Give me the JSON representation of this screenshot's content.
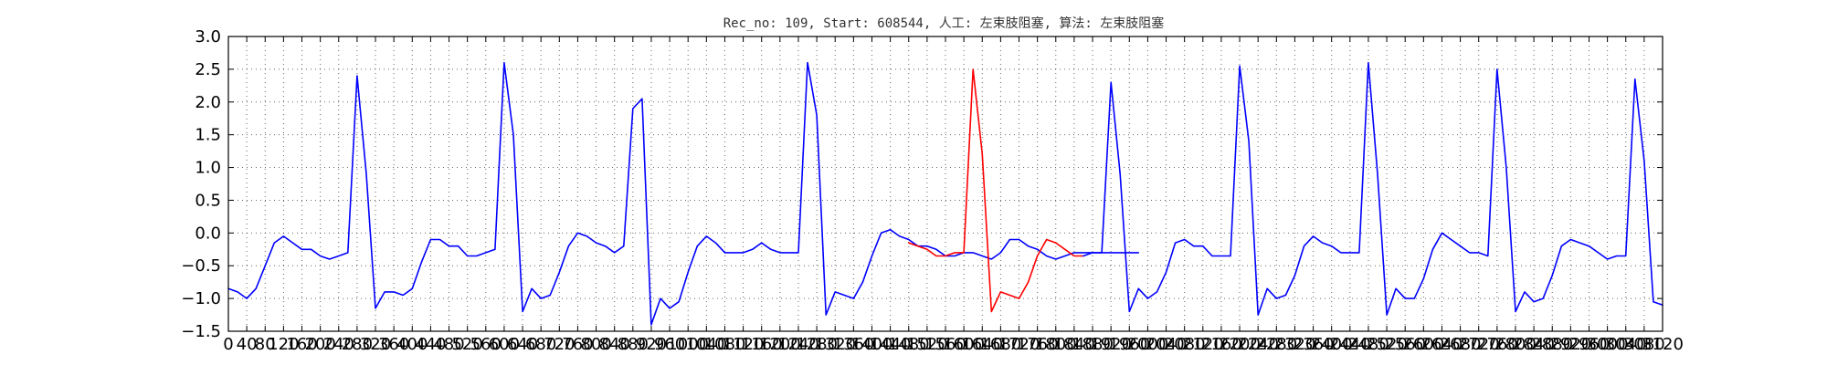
{
  "chart_data": {
    "type": "line",
    "title": "Rec_no: 109, Start: 608544, 人工: 左束肢阻塞, 算法: 左束肢阻塞",
    "xlabel": "",
    "ylabel": "",
    "xlim": [
      0,
      3120
    ],
    "ylim": [
      -1.5,
      3.0
    ],
    "y_ticks": [
      3.0,
      2.5,
      2.0,
      1.5,
      1.0,
      0.5,
      0.0,
      -0.5,
      -1.0,
      -1.5
    ],
    "y_tick_labels": [
      "3.0",
      "2.5",
      "2.0",
      "1.5",
      "1.0",
      "0.5",
      "0.0",
      "−0.5",
      "−1.0",
      "−1.5"
    ],
    "x_ticks": [
      0,
      40,
      80,
      120,
      160,
      200,
      240,
      280,
      320,
      360,
      400,
      440,
      480,
      520,
      560,
      600,
      640,
      680,
      720,
      760,
      800,
      840,
      880,
      920,
      960,
      1000,
      1040,
      1080,
      1120,
      1160,
      1200,
      1240,
      1280,
      1320,
      1360,
      1400,
      1440,
      1480,
      1520,
      1560,
      1600,
      1640,
      1680,
      1720,
      1760,
      1800,
      1840,
      1880,
      1920,
      1960,
      2000,
      2040,
      2080,
      2120,
      2160,
      2200,
      2240,
      2280,
      2320,
      2360,
      2400,
      2440,
      2480,
      2520,
      2560,
      2600,
      2640,
      2680,
      2720,
      2760,
      2800,
      2840,
      2880,
      2920,
      2960,
      3000,
      3040,
      3080,
      3120
    ],
    "x_tick_labels": [
      "0",
      "40",
      "80",
      "120",
      "160",
      "200",
      "240",
      "280",
      "320",
      "360",
      "400",
      "440",
      "480",
      "520",
      "560",
      "600",
      "640",
      "680",
      "720",
      "760",
      "800",
      "840",
      "880",
      "920",
      "960",
      "1000",
      "1040",
      "1080",
      "1120",
      "1160",
      "1200",
      "1240",
      "1280",
      "1320",
      "1360",
      "1400",
      "1440",
      "1480",
      "1520",
      "1560",
      "1600",
      "1640",
      "1680",
      "1720",
      "1760",
      "1800",
      "1840",
      "1880",
      "1920",
      "1960",
      "2000",
      "2040",
      "2080",
      "2120",
      "2160",
      "2200",
      "2240",
      "2280",
      "2320",
      "2360",
      "2400",
      "2440",
      "2480",
      "2520",
      "2560",
      "2600",
      "2640",
      "2680",
      "2720",
      "2760",
      "2800",
      "2840",
      "2880",
      "2920",
      "2960",
      "3000",
      "3040",
      "3080",
      "3120"
    ],
    "grid": true,
    "colors": {
      "normal": "#0000ff",
      "highlight": "#ff0000"
    },
    "series": [
      {
        "color": "#0000ff",
        "x": [
          0,
          20,
          40,
          60,
          80,
          100,
          120,
          140,
          160,
          180,
          200,
          220,
          240,
          260,
          280,
          300,
          320,
          340,
          360,
          380,
          400,
          420,
          440,
          460,
          480,
          500,
          520,
          540,
          560,
          580,
          600,
          620,
          640,
          660,
          680,
          700,
          720,
          740,
          760,
          780,
          800,
          820,
          840,
          860,
          880,
          900,
          920,
          940,
          960,
          980,
          1000,
          1020,
          1040,
          1060,
          1080,
          1100,
          1120,
          1140,
          1160,
          1180,
          1200,
          1220,
          1240,
          1260,
          1280,
          1300,
          1320,
          1340,
          1360,
          1380,
          1400,
          1420,
          1440,
          1460,
          1480,
          1500,
          1520,
          1540,
          1560,
          1580,
          1600,
          1620,
          1640,
          1660,
          1680,
          1700,
          1720,
          1740,
          1760,
          1780,
          1800,
          1820,
          1840,
          1860,
          1880,
          1900,
          1920,
          1940,
          1960,
          1980
        ],
        "y": [
          -0.85,
          -0.9,
          -1.0,
          -0.85,
          -0.5,
          -0.15,
          -0.05,
          -0.15,
          -0.25,
          -0.25,
          -0.35,
          -0.4,
          -0.35,
          -0.3,
          2.4,
          0.9,
          -1.15,
          -0.9,
          -0.9,
          -0.95,
          -0.85,
          -0.45,
          -0.1,
          -0.1,
          -0.2,
          -0.2,
          -0.35,
          -0.35,
          -0.3,
          -0.25,
          2.6,
          1.5,
          -1.2,
          -0.85,
          -1.0,
          -0.95,
          -0.6,
          -0.2,
          0.0,
          -0.05,
          -0.15,
          -0.2,
          -0.3,
          -0.2,
          1.9,
          2.05,
          -1.4,
          -1.0,
          -1.15,
          -1.05,
          -0.6,
          -0.2,
          -0.05,
          -0.15,
          -0.3,
          -0.3,
          -0.3,
          -0.25,
          -0.15,
          -0.25,
          -0.3,
          -0.3,
          -0.3,
          2.6,
          1.8,
          -1.25,
          -0.9,
          -0.95,
          -1.0,
          -0.75,
          -0.35,
          0.0,
          0.05,
          -0.05,
          -0.1,
          -0.2,
          -0.2,
          -0.25,
          -0.35,
          -0.35,
          -0.3,
          -0.3,
          -0.35,
          -0.4,
          -0.3,
          -0.1,
          -0.1,
          -0.2,
          -0.25,
          -0.35,
          -0.4,
          -0.35,
          -0.3,
          -0.3,
          -0.3,
          -0.3,
          -0.3,
          -0.3,
          -0.3,
          -0.3
        ]
      },
      {
        "color": "#ff0000",
        "x": [
          1480,
          1500,
          1520,
          1540,
          1560,
          1580,
          1600,
          1620,
          1640,
          1660,
          1680,
          1700,
          1720,
          1740,
          1760,
          1780,
          1800,
          1820,
          1840,
          1860
        ],
        "y": [
          -0.15,
          -0.2,
          -0.25,
          -0.35,
          -0.35,
          -0.3,
          -0.3,
          2.5,
          1.2,
          -1.2,
          -0.9,
          -0.95,
          -1.0,
          -0.75,
          -0.35,
          -0.1,
          -0.15,
          -0.25,
          -0.35,
          -0.35
        ]
      },
      {
        "color": "#0000ff",
        "x": [
          1860,
          1880,
          1900,
          1920,
          1940,
          1960,
          1980,
          2000,
          2020,
          2040,
          2060,
          2080,
          2100,
          2120,
          2140,
          2160,
          2180,
          2200,
          2220,
          2240,
          2260,
          2280,
          2300,
          2320,
          2340,
          2360,
          2380,
          2400,
          2420,
          2440,
          2460,
          2480,
          2500,
          2520,
          2540,
          2560,
          2580,
          2600,
          2620,
          2640,
          2660,
          2680,
          2700,
          2720,
          2740,
          2760,
          2780,
          2800,
          2820,
          2840,
          2860,
          2880,
          2900,
          2920,
          2940,
          2960,
          2980,
          3000,
          3020,
          3040,
          3060,
          3080,
          3100,
          3120
        ],
        "y": [
          -0.35,
          -0.3,
          -0.3,
          2.3,
          0.9,
          -1.2,
          -0.85,
          -1.0,
          -0.9,
          -0.6,
          -0.15,
          -0.1,
          -0.2,
          -0.2,
          -0.35,
          -0.35,
          -0.35,
          2.55,
          1.4,
          -1.25,
          -0.85,
          -1.0,
          -0.95,
          -0.65,
          -0.2,
          -0.05,
          -0.15,
          -0.2,
          -0.3,
          -0.3,
          -0.3,
          2.6,
          0.9,
          -1.25,
          -0.85,
          -1.0,
          -1.0,
          -0.7,
          -0.25,
          0.0,
          -0.1,
          -0.2,
          -0.3,
          -0.3,
          -0.35,
          2.5,
          1.0,
          -1.2,
          -0.9,
          -1.05,
          -1.0,
          -0.65,
          -0.2,
          -0.1,
          -0.15,
          -0.2,
          -0.3,
          -0.4,
          -0.35,
          -0.35,
          2.35,
          1.1,
          -1.05,
          -1.1
        ]
      }
    ]
  }
}
